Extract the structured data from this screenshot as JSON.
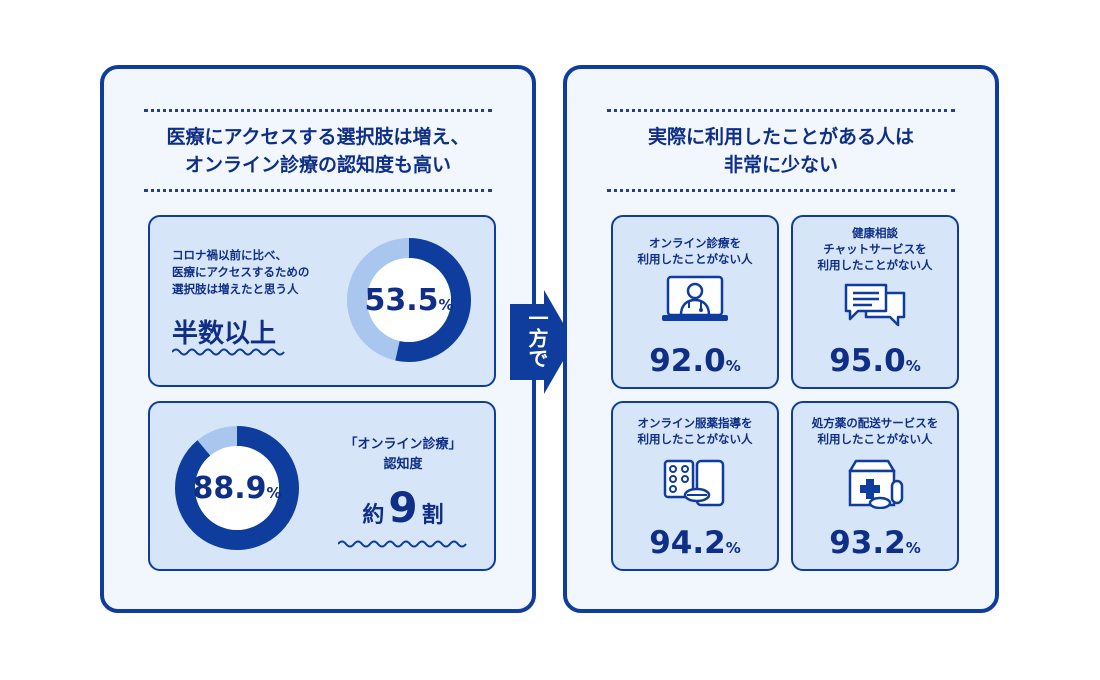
{
  "left": {
    "heading_line1": "医療にアクセスする選択肢は増え、",
    "heading_line2": "オンライン診療の認知度も高い",
    "card1": {
      "text_line1": "コロナ禍以前に比べ、",
      "text_line2": "医療にアクセスするための",
      "text_line3": "選択肢は増えたと思う人",
      "highlight": "半数以上",
      "value": "53.5",
      "unit": "%",
      "percent": 53.5
    },
    "card2": {
      "title_line1": "「オンライン診療」",
      "title_line2": "認知度",
      "highlight_pre": "約",
      "highlight_num": "9",
      "highlight_post": "割",
      "value": "88.9",
      "unit": "%",
      "percent": 88.9
    }
  },
  "connector": {
    "label": "一方で"
  },
  "right": {
    "heading_line1": "実際に利用したことがある人は",
    "heading_line2": "非常に少ない",
    "cards": [
      {
        "title_line1": "オンライン診療を",
        "title_line2": "利用したことがない人",
        "title_line3": "",
        "value": "92.0",
        "unit": "%",
        "icon": "doctor-monitor-icon"
      },
      {
        "title_line1": "健康相談",
        "title_line2": "チャットサービスを",
        "title_line3": "利用したことがない人",
        "value": "95.0",
        "unit": "%",
        "icon": "chat-bubbles-icon"
      },
      {
        "title_line1": "オンライン服薬指導を",
        "title_line2": "利用したことがない人",
        "title_line3": "",
        "value": "94.2",
        "unit": "%",
        "icon": "medicine-tablet-icon"
      },
      {
        "title_line1": "処方薬の配送サービスを",
        "title_line2": "利用したことがない人",
        "title_line3": "",
        "value": "93.2",
        "unit": "%",
        "icon": "medicine-box-icon"
      }
    ]
  },
  "colors": {
    "navy": "#0f3d9e",
    "light_ring": "#a9c6ee",
    "card_bg": "#d6e5f7",
    "panel_bg": "#f2f6fd"
  }
}
